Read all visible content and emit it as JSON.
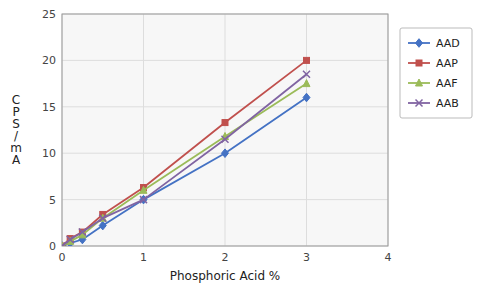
{
  "chart_data": {
    "type": "line",
    "x_label": "Phosphoric Acid %",
    "y_label": "C\nP\nS\n/\nm\nA",
    "x": [
      0,
      0.1,
      0.25,
      0.5,
      1.0,
      2.0,
      3.0
    ],
    "series": [
      {
        "name": "AAD",
        "color": "#4472C4",
        "marker": "diamond",
        "values": [
          0,
          0.3,
          0.7,
          2.2,
          5.0,
          10.0,
          16.0
        ]
      },
      {
        "name": "AAP",
        "color": "#C0504D",
        "marker": "square",
        "values": [
          0,
          0.8,
          1.5,
          3.4,
          6.3,
          13.3,
          20.0
        ]
      },
      {
        "name": "AAF",
        "color": "#9BBB59",
        "marker": "triangle",
        "values": [
          0,
          0.5,
          1.2,
          3.0,
          6.0,
          11.8,
          17.5
        ]
      },
      {
        "name": "AAB",
        "color": "#8064A2",
        "marker": "x",
        "values": [
          0,
          0.7,
          1.5,
          3.0,
          5.0,
          11.5,
          18.5
        ]
      }
    ],
    "xlim": [
      0,
      4
    ],
    "ylim": [
      0,
      25
    ],
    "xticks": [
      0,
      1,
      2,
      3,
      4
    ],
    "yticks": [
      0,
      5,
      10,
      15,
      20,
      25
    ],
    "grid": true,
    "legend": "right"
  }
}
